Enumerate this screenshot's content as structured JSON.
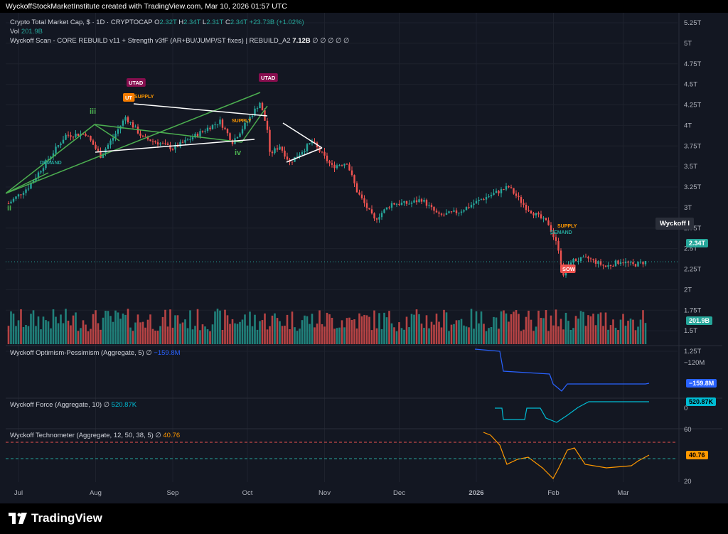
{
  "topbar": {
    "caption": "WyckoffStockMarketInstitute created with TradingView.com, Mar 10, 2026 01:57 UTC"
  },
  "header": {
    "symbol": "Crypto Total Market Cap, $ · 1D · CRYPTOCAP",
    "o_label": "O",
    "o_val": "2.32T",
    "h_label": "H",
    "h_val": "2.34T",
    "l_label": "L",
    "l_val": "2.31T",
    "c_label": "C",
    "c_val": "2.34T",
    "change": "+23.73B (+1.02%)",
    "vol_label": "Vol",
    "vol_val": "201.9B",
    "indicator": "Wyckoff Scan - CORE REBUILD v11 + Strength v3fF (AR+BU/JUMP/ST fixes) | REBUILD_A2",
    "indicator_val": "7.12B",
    "indicator_zeros": "∅ ∅ ∅ ∅ ∅"
  },
  "colors": {
    "bull": "#26a69a",
    "bear": "#ef5350",
    "background": "#131722",
    "grid": "#1e222d",
    "waves": "#4caf50",
    "wedge": "#ffffff"
  },
  "callout": "Wyckoff I",
  "price_badge": "2.34T",
  "volume_badge": "201.9B",
  "panels": {
    "optimism": {
      "title": "Wyckoff Optimism-Pessimism (Aggregate, 5)",
      "sym": "∅",
      "value": "−159.8M",
      "tick": "−120M",
      "color": "#2962ff"
    },
    "force": {
      "title": "Wyckoff Force (Aggregate, 10)",
      "sym": "∅",
      "value": "520.87K",
      "tick": "0",
      "color": "#00bcd4"
    },
    "techno": {
      "title": "Wyckoff Technometer (Aggregate, 12, 50, 38, 5)",
      "sym": "∅",
      "value": "40.76",
      "ticks": [
        "60",
        "20"
      ],
      "color": "#ff9800"
    }
  },
  "annotations": {
    "utad1": "UTAD",
    "utad2": "UTAD",
    "ut": "UT",
    "supply1": "SUPPLY",
    "supply2": "SUPPLY",
    "supply3": "SUPPLY",
    "demand1": "DEMAND",
    "demand2": "DEMAND",
    "sow": "SOW",
    "w_ii": "ii",
    "w_iii": "iii",
    "w_iv": "iv"
  },
  "branding": {
    "logo_text": "TradingView"
  },
  "chart_data": {
    "type": "candlestick",
    "title": "Crypto Total Market Cap, $ · 1D · CRYPTOCAP",
    "y_ticks": [
      "5.25T",
      "5T",
      "4.75T",
      "4.5T",
      "4.25T",
      "4T",
      "3.75T",
      "3.5T",
      "3.25T",
      "3T",
      "2.75T",
      "2.5T",
      "2.25T",
      "2T",
      "1.75T",
      "1.5T",
      "1.25T"
    ],
    "x_ticks": [
      "Jul",
      "Aug",
      "Sep",
      "Oct",
      "Nov",
      "Dec",
      "2026",
      "Feb",
      "Mar"
    ],
    "ylim": [
      1.25,
      5.25
    ],
    "x_start": "2025-06-27",
    "close_path": [
      {
        "date": "2025-06-27",
        "value": 3.05
      },
      {
        "date": "2025-07-05",
        "value": 3.25
      },
      {
        "date": "2025-07-12",
        "value": 3.55
      },
      {
        "date": "2025-07-20",
        "value": 3.88
      },
      {
        "date": "2025-07-28",
        "value": 3.9
      },
      {
        "date": "2025-08-03",
        "value": 3.63
      },
      {
        "date": "2025-08-08",
        "value": 3.85
      },
      {
        "date": "2025-08-13",
        "value": 4.1
      },
      {
        "date": "2025-08-20",
        "value": 3.85
      },
      {
        "date": "2025-08-27",
        "value": 3.78
      },
      {
        "date": "2025-09-01",
        "value": 3.72
      },
      {
        "date": "2025-09-07",
        "value": 3.82
      },
      {
        "date": "2025-09-14",
        "value": 3.95
      },
      {
        "date": "2025-09-20",
        "value": 4.05
      },
      {
        "date": "2025-09-25",
        "value": 3.8
      },
      {
        "date": "2025-10-01",
        "value": 4.05
      },
      {
        "date": "2025-10-06",
        "value": 4.28
      },
      {
        "date": "2025-10-09",
        "value": 3.95
      },
      {
        "date": "2025-10-10",
        "value": 3.65
      },
      {
        "date": "2025-10-14",
        "value": 3.75
      },
      {
        "date": "2025-10-18",
        "value": 3.55
      },
      {
        "date": "2025-10-27",
        "value": 3.8
      },
      {
        "date": "2025-11-04",
        "value": 3.5
      },
      {
        "date": "2025-11-10",
        "value": 3.55
      },
      {
        "date": "2025-11-14",
        "value": 3.2
      },
      {
        "date": "2025-11-21",
        "value": 2.85
      },
      {
        "date": "2025-11-28",
        "value": 3.05
      },
      {
        "date": "2025-12-05",
        "value": 3.05
      },
      {
        "date": "2025-12-10",
        "value": 3.1
      },
      {
        "date": "2025-12-17",
        "value": 2.9
      },
      {
        "date": "2025-12-25",
        "value": 2.95
      },
      {
        "date": "2026-01-03",
        "value": 3.1
      },
      {
        "date": "2026-01-14",
        "value": 3.25
      },
      {
        "date": "2026-01-21",
        "value": 3.0
      },
      {
        "date": "2026-01-30",
        "value": 2.8
      },
      {
        "date": "2026-02-03",
        "value": 2.5
      },
      {
        "date": "2026-02-05",
        "value": 2.15
      },
      {
        "date": "2026-02-08",
        "value": 2.35
      },
      {
        "date": "2026-02-15",
        "value": 2.38
      },
      {
        "date": "2026-02-22",
        "value": 2.28
      },
      {
        "date": "2026-02-28",
        "value": 2.35
      },
      {
        "date": "2026-03-05",
        "value": 2.3
      },
      {
        "date": "2026-03-10",
        "value": 2.34
      }
    ],
    "last_close": 2.34
  }
}
